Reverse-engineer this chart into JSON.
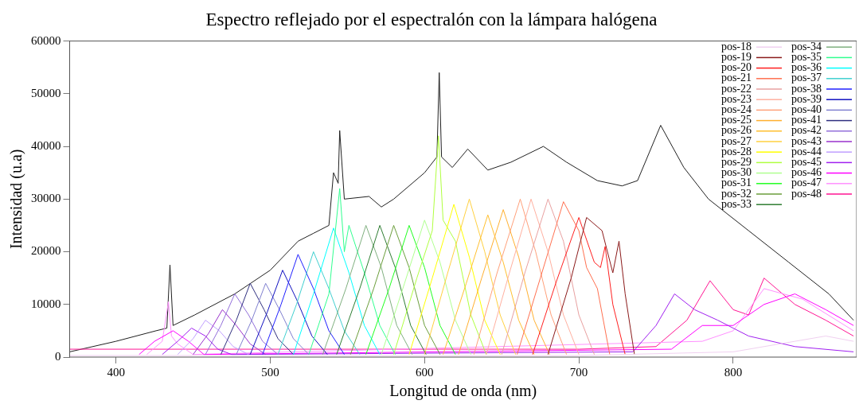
{
  "chart_data": {
    "type": "line",
    "title": "Espectro reflejado por el espectralón con la lámpara halógena",
    "xlabel": "Longitud de onda (nm)",
    "ylabel": "Intensidad (u.a)",
    "xlim": [
      370,
      880
    ],
    "xticks": [
      400,
      500,
      600,
      700,
      800
    ],
    "ylim": [
      0,
      60000
    ],
    "yticks": [
      0,
      10000,
      20000,
      30000,
      40000,
      50000,
      60000
    ],
    "grid": false,
    "legend": "top right",
    "marker": "none",
    "line_style": "solid",
    "series": [
      {
        "name": "pos-18",
        "color": "#f0d0f0",
        "x": [
          370,
          500,
          700,
          800,
          840,
          860,
          878
        ],
        "values": [
          300,
          300,
          300,
          1000,
          3000,
          4000,
          3000
        ]
      },
      {
        "name": "pos-19",
        "color": "#8b1a1a",
        "x": [
          680,
          695,
          705,
          715,
          722,
          726,
          730,
          736
        ],
        "values": [
          500,
          15000,
          26500,
          24000,
          16000,
          22000,
          12000,
          500
        ]
      },
      {
        "name": "pos-20",
        "color": "#ff2020",
        "x": [
          670,
          685,
          700,
          710,
          714,
          717,
          722,
          730
        ],
        "values": [
          500,
          14000,
          26500,
          18000,
          17000,
          21000,
          10000,
          500
        ]
      },
      {
        "name": "pos-21",
        "color": "#ff7050",
        "x": [
          660,
          675,
          690,
          700,
          705,
          712,
          720
        ],
        "values": [
          500,
          15000,
          29500,
          24000,
          17000,
          13000,
          500
        ]
      },
      {
        "name": "pos-22",
        "color": "#e8a0a0",
        "x": [
          650,
          665,
          680,
          690,
          700,
          710
        ],
        "values": [
          500,
          16000,
          30000,
          22000,
          8000,
          500
        ]
      },
      {
        "name": "pos-23",
        "color": "#ffb0a0",
        "x": [
          640,
          655,
          669,
          680,
          690,
          700
        ],
        "values": [
          500,
          16000,
          30000,
          20000,
          8000,
          500
        ]
      },
      {
        "name": "pos-24",
        "color": "#ffa07a",
        "x": [
          632,
          647,
          662,
          672,
          682,
          692
        ],
        "values": [
          500,
          16000,
          30000,
          20000,
          8000,
          500
        ]
      },
      {
        "name": "pos-25",
        "color": "#ffb030",
        "x": [
          622,
          637,
          651,
          661,
          671,
          681
        ],
        "values": [
          500,
          15000,
          28000,
          19000,
          7000,
          500
        ]
      },
      {
        "name": "pos-26",
        "color": "#ffc030",
        "x": [
          612,
          627,
          641,
          651,
          661,
          671
        ],
        "values": [
          500,
          14000,
          27000,
          18000,
          7000,
          500
        ]
      },
      {
        "name": "pos-27",
        "color": "#ffd040",
        "x": [
          600,
          615,
          629,
          639,
          649,
          659
        ],
        "values": [
          500,
          16000,
          30000,
          20000,
          8000,
          500
        ]
      },
      {
        "name": "pos-28",
        "color": "#ffff00",
        "x": [
          590,
          605,
          619,
          629,
          639,
          649
        ],
        "values": [
          500,
          15000,
          29000,
          19000,
          7000,
          500
        ]
      },
      {
        "name": "pos-29",
        "color": "#b0ff40",
        "x": [
          580,
          595,
          605,
          609,
          612,
          620,
          630,
          640
        ],
        "values": [
          500,
          15000,
          24000,
          42000,
          26000,
          22000,
          8000,
          500
        ]
      },
      {
        "name": "pos-30",
        "color": "#b0ff90",
        "x": [
          572,
          587,
          600,
          610,
          620,
          630
        ],
        "values": [
          500,
          14000,
          26000,
          18000,
          7000,
          500
        ]
      },
      {
        "name": "pos-31",
        "color": "#20ff20",
        "x": [
          562,
          577,
          590,
          600,
          610,
          620
        ],
        "values": [
          500,
          13000,
          25000,
          17000,
          6000,
          500
        ]
      },
      {
        "name": "pos-32",
        "color": "#6b9e3b",
        "x": [
          552,
          567,
          580,
          590,
          600,
          610
        ],
        "values": [
          500,
          13000,
          25000,
          17000,
          6000,
          500
        ]
      },
      {
        "name": "pos-33",
        "color": "#2e7d32",
        "x": [
          543,
          558,
          571,
          581,
          591,
          601
        ],
        "values": [
          500,
          13000,
          25000,
          17000,
          6000,
          500
        ]
      },
      {
        "name": "pos-34",
        "color": "#80b080",
        "x": [
          534,
          549,
          562,
          572,
          582,
          592
        ],
        "values": [
          500,
          13000,
          25000,
          17000,
          6000,
          500
        ]
      },
      {
        "name": "pos-35",
        "color": "#30ff90",
        "x": [
          525,
          538,
          545,
          548,
          551,
          561,
          571,
          581
        ],
        "values": [
          500,
          12000,
          32000,
          20000,
          25000,
          16000,
          6000,
          500
        ]
      },
      {
        "name": "pos-36",
        "color": "#00ffff",
        "x": [
          515,
          528,
          541,
          551,
          561,
          571
        ],
        "values": [
          500,
          12000,
          24500,
          16000,
          6000,
          500
        ]
      },
      {
        "name": "pos-37",
        "color": "#40d0d0",
        "x": [
          505,
          517,
          528,
          538,
          548,
          558
        ],
        "values": [
          500,
          10000,
          20000,
          13000,
          5000,
          500
        ]
      },
      {
        "name": "pos-38",
        "color": "#2020ff",
        "x": [
          495,
          507,
          518,
          528,
          538,
          548
        ],
        "values": [
          500,
          10000,
          19500,
          13000,
          5000,
          500
        ]
      },
      {
        "name": "pos-39",
        "color": "#1010c0",
        "x": [
          487,
          498,
          508,
          517,
          527,
          537
        ],
        "values": [
          500,
          8500,
          16500,
          11000,
          4000,
          500
        ]
      },
      {
        "name": "pos-40",
        "color": "#8080d0",
        "x": [
          478,
          488,
          497,
          506,
          515,
          525
        ],
        "values": [
          500,
          7000,
          14000,
          9000,
          3500,
          500
        ]
      },
      {
        "name": "pos-41",
        "color": "#303080",
        "x": [
          468,
          478,
          487,
          496,
          505,
          515
        ],
        "values": [
          500,
          7000,
          14000,
          9000,
          3500,
          500
        ]
      },
      {
        "name": "pos-42",
        "color": "#9370db",
        "x": [
          458,
          468,
          477,
          486,
          495,
          505
        ],
        "values": [
          500,
          6000,
          12000,
          8000,
          3000,
          500
        ]
      },
      {
        "name": "pos-43",
        "color": "#9932cc",
        "x": [
          450,
          460,
          469,
          478,
          487,
          497
        ],
        "values": [
          500,
          4500,
          9000,
          6000,
          2500,
          500
        ]
      },
      {
        "name": "pos-44",
        "color": "#c0a0ff",
        "x": [
          440,
          450,
          458,
          467,
          476,
          486
        ],
        "values": [
          500,
          3500,
          7000,
          5000,
          2000,
          500
        ]
      },
      {
        "name": "pos-45",
        "color": "#a020f0",
        "x": [
          430,
          440,
          449,
          458,
          466,
          475,
          735,
          750,
          762,
          775,
          790,
          810,
          840,
          878
        ],
        "values": [
          500,
          3000,
          5500,
          4000,
          1500,
          500,
          1000,
          6000,
          12000,
          9000,
          7000,
          4000,
          2000,
          1000
        ]
      },
      {
        "name": "pos-46",
        "color": "#ff00ff",
        "x": [
          415,
          425,
          437,
          447,
          457,
          760,
          780,
          800,
          820,
          840,
          860,
          878
        ],
        "values": [
          500,
          3000,
          5000,
          3000,
          500,
          1500,
          6000,
          6000,
          10000,
          12000,
          9000,
          6000
        ]
      },
      {
        "name": "pos-47",
        "color": "#ff90ff",
        "x": [
          420,
          430,
          434,
          436,
          440,
          450,
          780,
          800,
          820,
          845,
          878
        ],
        "values": [
          500,
          3000,
          10500,
          4000,
          2500,
          500,
          3000,
          5000,
          13000,
          11000,
          5000
        ]
      },
      {
        "name": "pos-48",
        "color": "#ff1493",
        "x": [
          370,
          420,
          500,
          600,
          700,
          750,
          770,
          785,
          800,
          810,
          820,
          840,
          860,
          878
        ],
        "values": [
          1500,
          1500,
          1500,
          1500,
          1500,
          2000,
          7000,
          14500,
          9000,
          8000,
          15000,
          10000,
          7000,
          4000
        ]
      },
      {
        "color": "#202020",
        "x": [
          370,
          400,
          426,
          433,
          435,
          437,
          451,
          477,
          500,
          518,
          528,
          538,
          541,
          544,
          545,
          548,
          564,
          572,
          580,
          600,
          608,
          609.5,
          611,
          618,
          628,
          641,
          656,
          677,
          692,
          712,
          728,
          738,
          753,
          768,
          784,
          810,
          836,
          862,
          878
        ],
        "values": [
          1000,
          3000,
          5000,
          5500,
          17500,
          6000,
          8000,
          12000,
          16500,
          22000,
          23500,
          25000,
          35000,
          33000,
          43000,
          30000,
          30500,
          28500,
          30000,
          35000,
          38000,
          54000,
          38000,
          36000,
          39500,
          35500,
          37000,
          40000,
          37000,
          33500,
          32500,
          33500,
          44000,
          36000,
          30000,
          24000,
          18000,
          12000,
          7000
        ]
      }
    ]
  }
}
